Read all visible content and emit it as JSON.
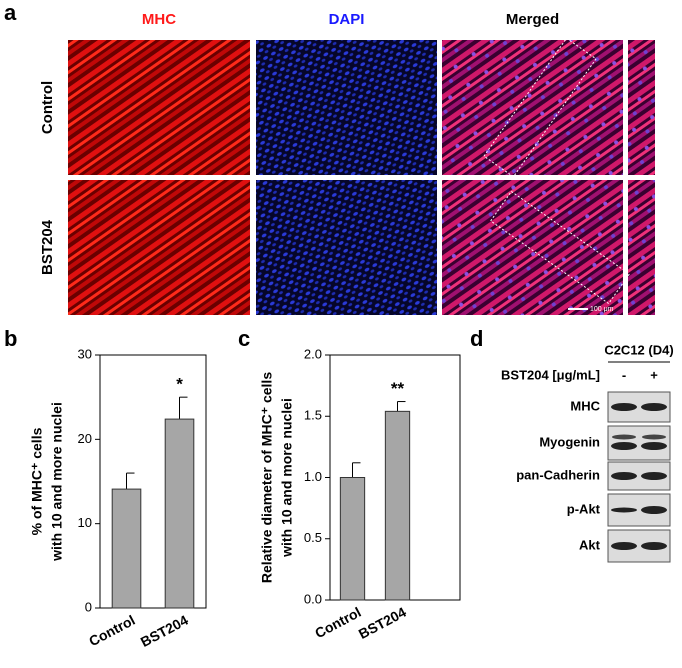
{
  "panel_labels": [
    "a",
    "b",
    "c",
    "d"
  ],
  "microscopy": {
    "columns": [
      "MHC",
      "DAPI",
      "Merged"
    ],
    "rows": [
      "Control",
      "BST204"
    ],
    "scale_bar": "100 μm"
  },
  "chart_data": [
    {
      "type": "bar",
      "ylabel": [
        "% of MHC⁺ cells",
        "with 10 and more nuclei"
      ],
      "categories": [
        "Control",
        "BST204"
      ],
      "values": [
        14.1,
        22.4
      ],
      "errors": [
        1.9,
        2.6
      ],
      "significance": [
        null,
        "*"
      ],
      "color": "#a6a6a6",
      "ylim": [
        0,
        30
      ],
      "yticks": [
        0,
        10,
        20,
        30
      ]
    },
    {
      "type": "bar",
      "ylabel": [
        "Relative diameter of MHC⁺ cells",
        "with 10 and more nuclei"
      ],
      "categories": [
        "Control",
        "BST204"
      ],
      "values": [
        1.0,
        1.54
      ],
      "errors": [
        0.12,
        0.08
      ],
      "significance": [
        null,
        "**"
      ],
      "color": "#a6a6a6",
      "ylim": [
        0,
        2.0
      ],
      "yticks": [
        {
          "value": 0,
          "label": "0.0"
        },
        0.5,
        {
          "value": 1.0,
          "label": "1.0"
        },
        1.5,
        {
          "value": 2.0,
          "label": "2.0"
        }
      ]
    }
  ],
  "blot": {
    "cell_line": "C2C12 (D4)",
    "treatment": "BST204 [μg/mL]",
    "lanes": [
      "-",
      "+"
    ],
    "proteins": [
      "MHC",
      "Myogenin",
      "pan-Cadherin",
      "p-Akt",
      "Akt"
    ]
  }
}
